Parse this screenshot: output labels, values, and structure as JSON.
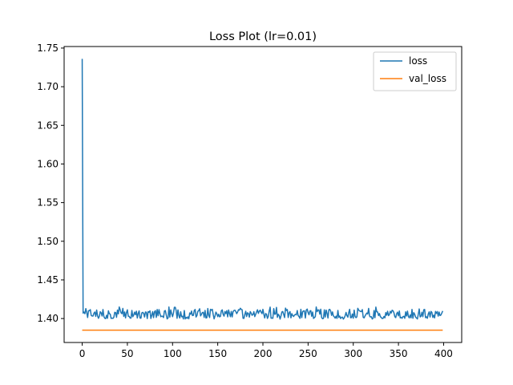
{
  "chart_data": {
    "type": "line",
    "title": "Loss Plot (lr=0.01)",
    "xlabel": "",
    "ylabel": "",
    "xlim": [
      -20,
      420
    ],
    "ylim": [
      1.369,
      1.752
    ],
    "xticks": [
      0,
      50,
      100,
      150,
      200,
      250,
      300,
      350,
      400
    ],
    "yticks": [
      1.4,
      1.45,
      1.5,
      1.55,
      1.6,
      1.65,
      1.7,
      1.75
    ],
    "grid": false,
    "legend_position": "top-right",
    "series": [
      {
        "name": "loss",
        "color": "#1f77b4",
        "x_range": [
          0,
          399
        ],
        "initial": 1.736,
        "steady_mean": 1.406,
        "steady_min": 1.399,
        "steady_max": 1.415
      },
      {
        "name": "val_loss",
        "color": "#ff7f0e",
        "x_range": [
          0,
          399
        ],
        "constant": 1.385
      }
    ]
  }
}
